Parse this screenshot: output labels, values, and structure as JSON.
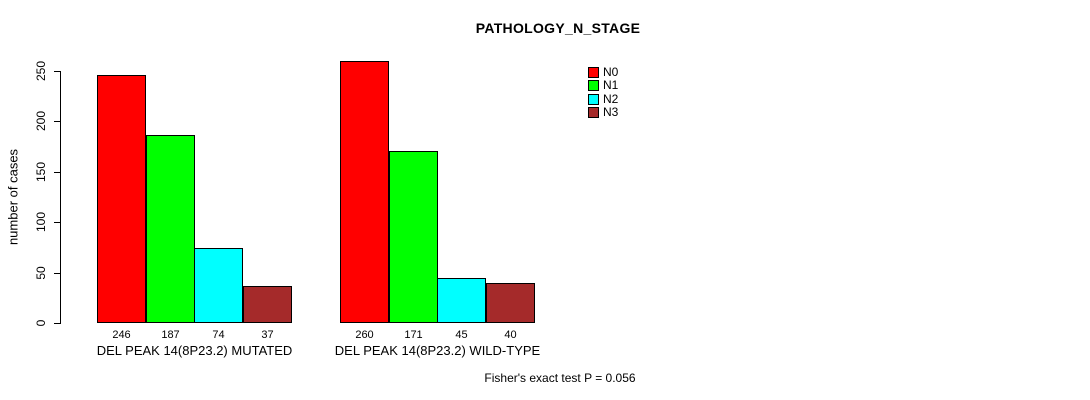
{
  "footnote": "Fisher's exact test P = 0.056",
  "chart_data": {
    "type": "bar",
    "title": "PATHOLOGY_N_STAGE",
    "xlabel": "",
    "ylabel": "number of cases",
    "ylim": [
      0,
      250
    ],
    "yticks": [
      0,
      50,
      100,
      150,
      200,
      250
    ],
    "grid": false,
    "legend_position": "top-right",
    "categories": [
      "DEL PEAK 14(8P23.2) MUTATED",
      "DEL PEAK 14(8P23.2) WILD-TYPE"
    ],
    "series": [
      {
        "name": "N0",
        "color": "#FF0000",
        "values": [
          246,
          260
        ]
      },
      {
        "name": "N1",
        "color": "#00FF00",
        "values": [
          187,
          171
        ]
      },
      {
        "name": "N2",
        "color": "#00FFFF",
        "values": [
          74,
          45
        ]
      },
      {
        "name": "N3",
        "color": "#A52A2A",
        "values": [
          37,
          40
        ]
      }
    ],
    "bar_value_labels": true
  }
}
